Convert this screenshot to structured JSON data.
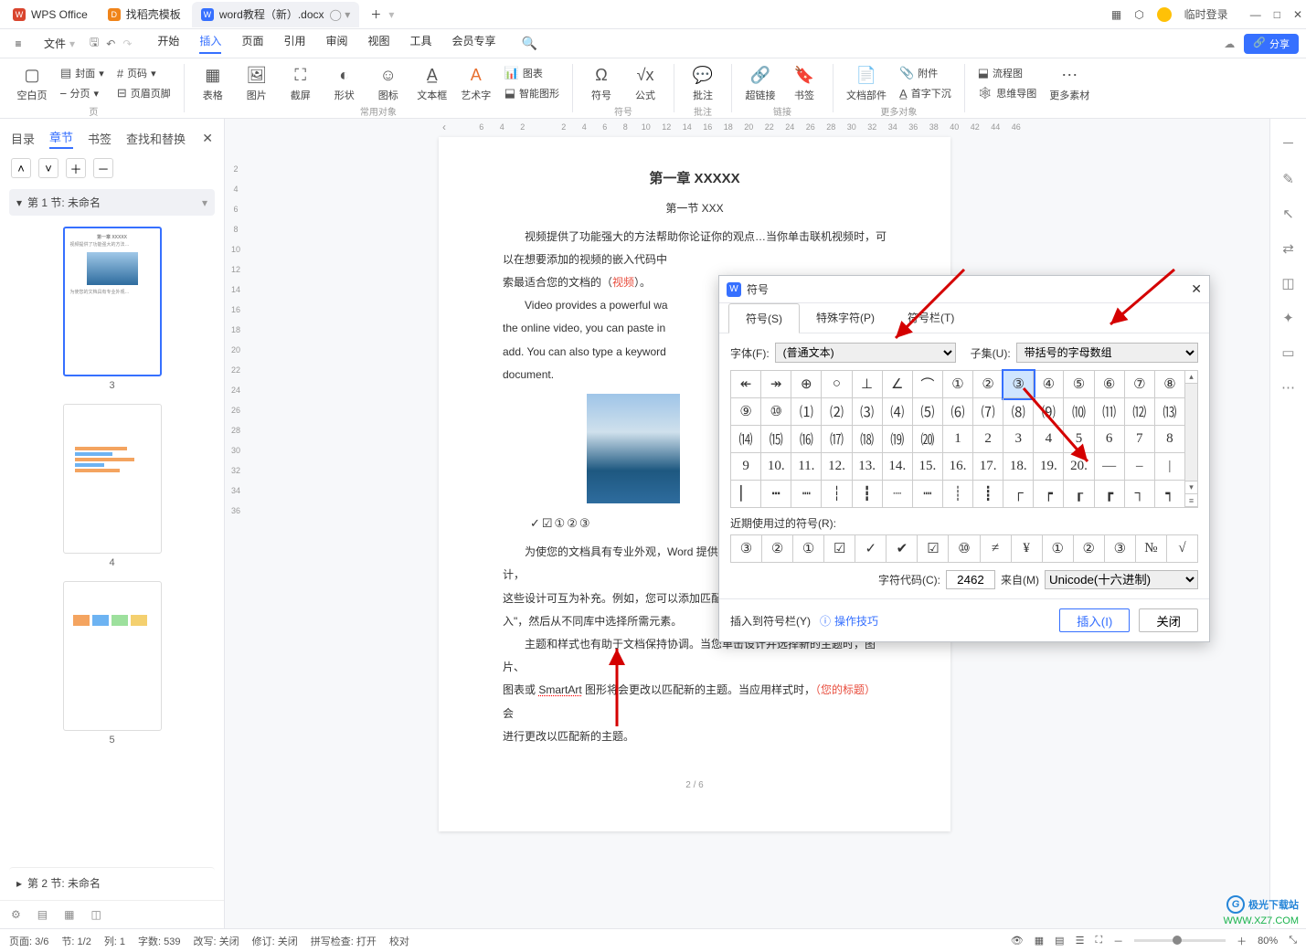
{
  "titlebar": {
    "tab1": "WPS Office",
    "tab2": "找稻壳模板",
    "tab3": "word教程（新）.docx",
    "plus": "＋",
    "login": "临时登录"
  },
  "menu": {
    "file": "文件",
    "items": [
      "开始",
      "插入",
      "页面",
      "引用",
      "审阅",
      "视图",
      "工具",
      "会员专享"
    ],
    "share": "分享"
  },
  "ribbon": {
    "g1": {
      "b1": "空白页",
      "b2": "封面",
      "b3": "分页",
      "b4": "页码",
      "b5": "页眉页脚",
      "name": "页"
    },
    "g2": {
      "b1": "表格",
      "b2": "图片",
      "b3": "截屏",
      "b4": "形状",
      "b5": "图标",
      "b6": "文本框",
      "b7": "艺术字",
      "c1": "图表",
      "c2": "智能图形",
      "name": "常用对象"
    },
    "g3": {
      "b1": "符号",
      "b2": "公式",
      "name": "符号"
    },
    "g4": {
      "b1": "批注",
      "name": "批注"
    },
    "g5": {
      "b1": "超链接",
      "b2": "书签",
      "name": "链接"
    },
    "g6": {
      "b1": "文档部件",
      "c1": "附件",
      "c2": "首字下沉",
      "name": "更多对象"
    },
    "g7": {
      "c1": "流程图",
      "c2": "思维导图",
      "b2": "更多素材",
      "name": ""
    }
  },
  "navtabs": {
    "t1": "目录",
    "t2": "章节",
    "t3": "书签",
    "t4": "查找和替换"
  },
  "sections": {
    "s1": "第 1 节: 未命名",
    "s2": "第 2 节: 未命名"
  },
  "thumbs": {
    "n3": "3",
    "n4": "4",
    "n5": "5"
  },
  "ruler": [
    "6",
    "4",
    "2",
    "",
    "2",
    "4",
    "6",
    "8",
    "10",
    "12",
    "14",
    "16",
    "18",
    "20",
    "22",
    "24",
    "26",
    "28",
    "30",
    "32",
    "34",
    "36",
    "38",
    "40",
    "42",
    "44",
    "46"
  ],
  "rulerV": [
    "",
    "2",
    "4",
    "6",
    "8",
    "10",
    "12",
    "14",
    "16",
    "18",
    "20",
    "22",
    "24",
    "26",
    "28",
    "30",
    "32",
    "34",
    "36"
  ],
  "doc": {
    "h1": "第一章  XXXXX",
    "h2": "第一节  XXX",
    "p1": "视频提供了功能强大的方法帮助你论证你的观点…当你单击联机视频时，可",
    "p2": "以在想要添加的视频的嵌入代码中",
    "p3": "索最适合您的文档的（",
    "p3r": "视频",
    "p3b": "）。",
    "p4": "Video provides a powerful wa",
    "p5": "the online video, you can paste in",
    "p6": "add. You can also type a keyword",
    "p7": "document.",
    "sym": "✓☑①②③",
    "p8": "为使您的文档具有专业外观，Word 提供了页眉、页脚、封面和文本框设计，",
    "p9": "这些设计可互为补充。例如，您可以添加匹配的封面、页眉和提要栏。单击\"插",
    "p10": "入\"，然后从不同库中选择所需元素。",
    "p11": "主题和样式也有助于文档保持协调。当您单击设计并选择新的主题时，图片、",
    "p12a": "图表或 ",
    "p12u": "SmartArt",
    "p12b": " 图形将会更改以匹配新的主题。当应用样式时，",
    "p12r": "（您的标题）",
    "p12c": " 会",
    "p13": "进行更改以匹配新的主题。",
    "foot": "2 / 6"
  },
  "dialog": {
    "title": "符号",
    "tab1": "符号(S)",
    "tab2": "特殊字符(P)",
    "tab3": "符号栏(T)",
    "fontLbl": "字体(F):",
    "fontVal": "(普通文本)",
    "subsetLbl": "子集(U):",
    "subsetVal": "带括号的字母数组",
    "grid": [
      "↞",
      "↠",
      "⊕",
      "○",
      "⊥",
      "∠",
      "⌒",
      "①",
      "②",
      "③",
      "④",
      "⑤",
      "⑥",
      "⑦",
      "⑧",
      "⑨",
      "⑩",
      "⑴",
      "⑵",
      "⑶",
      "⑷",
      "⑸",
      "⑹",
      "⑺",
      "⑻",
      "⑼",
      "⑽",
      "⑾",
      "⑿",
      "⒀",
      "⒁",
      "⒂",
      "⒃",
      "⒄",
      "⒅",
      "⒆",
      "⒇",
      "1",
      "2",
      "3",
      "4",
      "5",
      "6",
      "7",
      "8",
      "9",
      "10.",
      "11.",
      "12.",
      "13.",
      "14.",
      "15.",
      "16.",
      "17.",
      "18.",
      "19.",
      "20.",
      "—",
      "–",
      "|",
      "▏",
      "┅",
      "┉",
      "┆",
      "┇",
      "┈",
      "┉",
      "┊",
      "┋",
      "┌",
      "┍",
      "┎",
      "┏",
      "┐",
      "┑"
    ],
    "selectedIdx": 9,
    "recentLbl": "近期使用过的符号(R):",
    "recent": [
      "③",
      "②",
      "①",
      "☑",
      "✓",
      "✔",
      "☑",
      "⑩",
      "≠",
      "¥",
      "①",
      "②",
      "③",
      "№",
      "√"
    ],
    "codeLbl": "字符代码(C):",
    "codeVal": "2462",
    "fromLbl": "来自(M)",
    "fromVal": "Unicode(十六进制)",
    "insertBar": "插入到符号栏(Y)",
    "tips": "操作技巧",
    "insertBtn": "插入(I)",
    "closeBtn": "关闭"
  },
  "status": {
    "page": "页面: 3/6",
    "sec": "节: 1/2",
    "col": "列: 1",
    "words": "字数: 539",
    "rev": "改写: 关闭",
    "trk": "修订: 关闭",
    "spell": "拼写检查: 打开",
    "proof": "校对",
    "zoom": "80%"
  },
  "watermark": {
    "name": "极光下载站",
    "url": "WWW.XZ7.COM"
  }
}
